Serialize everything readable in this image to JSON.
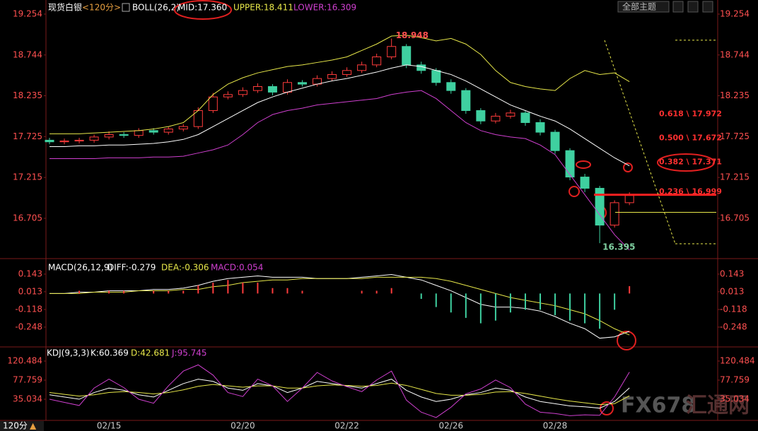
{
  "header": {
    "theme_button": "全部主题",
    "footer_period": "120分",
    "watermark": [
      "FX678",
      "汇通网"
    ]
  },
  "chart_data": [
    {
      "type": "candlestick",
      "title": "现货白银",
      "period": "<120分>",
      "indicator": "BOLL(26,2)",
      "categories": [
        null,
        null,
        null,
        null,
        "02/15",
        null,
        null,
        null,
        null,
        null,
        null,
        null,
        null,
        "02/20",
        null,
        null,
        null,
        null,
        null,
        null,
        "02/22",
        null,
        null,
        null,
        null,
        null,
        null,
        "02/26",
        null,
        null,
        null,
        null,
        null,
        null,
        "02/28",
        null,
        null,
        null,
        null,
        null
      ],
      "open": [
        17.68,
        17.66,
        17.67,
        17.68,
        17.72,
        17.75,
        17.74,
        17.8,
        17.78,
        17.82,
        17.85,
        18.05,
        18.22,
        18.25,
        18.3,
        18.35,
        18.28,
        18.4,
        18.38,
        18.45,
        18.5,
        18.55,
        18.62,
        18.72,
        18.85,
        18.62,
        18.55,
        18.4,
        18.3,
        18.05,
        17.92,
        17.98,
        18.02,
        17.9,
        17.78,
        17.55,
        17.22,
        17.08,
        16.62,
        16.9
      ],
      "high": [
        17.71,
        17.7,
        17.71,
        17.75,
        17.79,
        17.78,
        17.83,
        17.83,
        17.85,
        17.88,
        18.09,
        18.27,
        18.29,
        18.34,
        18.39,
        18.38,
        18.44,
        18.43,
        18.49,
        18.54,
        18.59,
        18.66,
        18.76,
        18.948,
        18.88,
        18.66,
        18.58,
        18.44,
        18.33,
        18.08,
        18.02,
        18.06,
        18.05,
        17.94,
        17.81,
        17.58,
        17.26,
        17.11,
        16.93,
        17.03
      ],
      "low": [
        17.63,
        17.63,
        17.64,
        17.65,
        17.69,
        17.71,
        17.71,
        17.75,
        17.75,
        17.79,
        17.82,
        18.02,
        18.19,
        18.22,
        18.27,
        18.24,
        18.25,
        18.35,
        18.35,
        18.42,
        18.47,
        18.52,
        18.59,
        18.69,
        18.58,
        18.51,
        18.36,
        18.26,
        18.01,
        17.88,
        17.89,
        17.95,
        17.86,
        17.74,
        17.51,
        17.18,
        17.03,
        16.395,
        16.59,
        16.87
      ],
      "close": [
        17.66,
        17.67,
        17.68,
        17.72,
        17.75,
        17.74,
        17.8,
        17.78,
        17.82,
        17.85,
        18.05,
        18.22,
        18.25,
        18.3,
        18.35,
        18.28,
        18.4,
        18.38,
        18.45,
        18.5,
        18.55,
        18.62,
        18.72,
        18.85,
        18.62,
        18.55,
        18.4,
        18.3,
        18.05,
        17.92,
        17.98,
        18.02,
        17.9,
        17.78,
        17.55,
        17.22,
        17.08,
        16.62,
        16.9,
        16.99
      ],
      "up_color": "#ff3c3c",
      "down_color": "#3fd0a0",
      "series": [
        {
          "name": "MID:17.360",
          "color": "#ffffff",
          "values": [
            17.6,
            17.6,
            17.61,
            17.61,
            17.62,
            17.62,
            17.63,
            17.64,
            17.66,
            17.69,
            17.75,
            17.85,
            17.95,
            18.05,
            18.15,
            18.22,
            18.28,
            18.33,
            18.38,
            18.42,
            18.45,
            18.49,
            18.53,
            18.58,
            18.62,
            18.6,
            18.55,
            18.5,
            18.42,
            18.32,
            18.22,
            18.12,
            18.05,
            17.98,
            17.92,
            17.82,
            17.7,
            17.58,
            17.46,
            17.36
          ]
        },
        {
          "name": "UPPER:18.411",
          "color": "#e8e84a",
          "values": [
            17.76,
            17.76,
            17.76,
            17.77,
            17.78,
            17.79,
            17.8,
            17.82,
            17.85,
            17.9,
            18.05,
            18.25,
            18.38,
            18.46,
            18.52,
            18.56,
            18.6,
            18.62,
            18.65,
            18.68,
            18.72,
            18.8,
            18.88,
            18.98,
            18.99,
            18.96,
            18.92,
            18.95,
            18.88,
            18.75,
            18.55,
            18.4,
            18.35,
            18.32,
            18.3,
            18.45,
            18.55,
            18.5,
            18.52,
            18.411
          ]
        },
        {
          "name": "LOWER:16.309",
          "color": "#d040d0",
          "values": [
            17.45,
            17.45,
            17.45,
            17.45,
            17.46,
            17.46,
            17.46,
            17.47,
            17.47,
            17.48,
            17.52,
            17.56,
            17.62,
            17.75,
            17.9,
            18.0,
            18.05,
            18.08,
            18.12,
            18.14,
            18.16,
            18.18,
            18.2,
            18.25,
            18.28,
            18.3,
            18.2,
            18.05,
            17.9,
            17.8,
            17.75,
            17.72,
            17.7,
            17.62,
            17.5,
            17.25,
            17.0,
            16.75,
            16.5,
            16.309
          ]
        }
      ],
      "extremes": [
        18.948,
        16.395
      ],
      "fib_levels": [
        {
          "value": 17.972,
          "label": "0.618 \\ 17.972"
        },
        {
          "value": 17.672,
          "label": "0.500 \\ 17.672"
        },
        {
          "value": 17.371,
          "label": "0.382 \\ 17.371"
        },
        {
          "value": 16.999,
          "label": "0.236 \\ 16.999"
        }
      ],
      "lines": [
        {
          "value": 16.999,
          "color": "#ff2020"
        },
        {
          "value": 16.78,
          "color": "#e8e84a"
        }
      ],
      "guides": [
        18.928,
        16.387
      ],
      "ylim": [
        16.211,
        19.43
      ],
      "yticks": [
        19.254,
        18.744,
        18.235,
        17.725,
        17.215,
        16.705
      ]
    },
    {
      "type": "macd",
      "title": "MACD(26,12,9)",
      "series": [
        {
          "name": "DIFF:-0.279",
          "color": "#ffffff",
          "values": [
            0.0,
            0.0,
            0.01,
            0.01,
            0.02,
            0.02,
            0.02,
            0.03,
            0.03,
            0.04,
            0.06,
            0.09,
            0.11,
            0.12,
            0.13,
            0.12,
            0.12,
            0.12,
            0.11,
            0.11,
            0.11,
            0.12,
            0.13,
            0.14,
            0.12,
            0.1,
            0.06,
            0.02,
            -0.03,
            -0.08,
            -0.1,
            -0.1,
            -0.11,
            -0.13,
            -0.17,
            -0.22,
            -0.26,
            -0.33,
            -0.32,
            -0.279
          ]
        },
        {
          "name": "DEA:-0.306",
          "color": "#e8e84a",
          "values": [
            0.0,
            0.0,
            0.0,
            0.01,
            0.01,
            0.01,
            0.02,
            0.02,
            0.02,
            0.03,
            0.03,
            0.05,
            0.06,
            0.08,
            0.09,
            0.1,
            0.1,
            0.11,
            0.11,
            0.11,
            0.11,
            0.11,
            0.12,
            0.12,
            0.12,
            0.12,
            0.11,
            0.09,
            0.06,
            0.03,
            0.0,
            -0.03,
            -0.05,
            -0.07,
            -0.09,
            -0.12,
            -0.15,
            -0.2,
            -0.26,
            -0.306
          ]
        },
        {
          "name": "MACD:0.054",
          "color": "#d040d0",
          "up_color": "#ff3c3c",
          "down_color": "#3fd0a0",
          "values": [
            0,
            0,
            0.02,
            0,
            0.02,
            0.02,
            0,
            0.02,
            0.02,
            0.02,
            0.06,
            0.08,
            0.1,
            0.08,
            0.08,
            0.04,
            0.04,
            0.02,
            0,
            0,
            0,
            0.02,
            0.02,
            0.04,
            0,
            -0.04,
            -0.1,
            -0.14,
            -0.18,
            -0.22,
            -0.2,
            -0.14,
            -0.12,
            -0.12,
            -0.16,
            -0.2,
            -0.22,
            -0.26,
            -0.12,
            0.054
          ]
        }
      ],
      "ylim": [
        -0.389,
        0.247
      ],
      "yticks": [
        0.143,
        0.013,
        -0.118,
        -0.248
      ]
    },
    {
      "type": "kdj",
      "title": "KDJ(9,3,3)",
      "series": [
        {
          "name": "K:60.369",
          "color": "#ffffff",
          "values": [
            45,
            40,
            35,
            50,
            60,
            55,
            45,
            40,
            55,
            70,
            80,
            75,
            60,
            55,
            70,
            65,
            50,
            60,
            75,
            70,
            65,
            60,
            70,
            80,
            55,
            40,
            30,
            35,
            45,
            50,
            60,
            55,
            40,
            30,
            25,
            20,
            18,
            15,
            30,
            60.369
          ]
        },
        {
          "name": "D:42.681",
          "color": "#e8e84a",
          "values": [
            50,
            46,
            42,
            45,
            50,
            52,
            50,
            47,
            50,
            56,
            64,
            68,
            65,
            62,
            65,
            65,
            60,
            60,
            65,
            67,
            66,
            64,
            66,
            71,
            66,
            57,
            48,
            44,
            44,
            46,
            51,
            52,
            48,
            42,
            36,
            31,
            27,
            23,
            25,
            42.681
          ]
        },
        {
          "name": "J:95.745",
          "color": "#d040d0",
          "values": [
            35,
            28,
            21,
            60,
            80,
            61,
            35,
            26,
            65,
            98,
            112,
            89,
            50,
            41,
            80,
            65,
            30,
            60,
            95,
            76,
            63,
            52,
            78,
            98,
            33,
            6,
            -6,
            17,
            47,
            58,
            78,
            61,
            24,
            6,
            3,
            -2,
            0,
            -1,
            40,
            95.745
          ]
        }
      ],
      "ylim": [
        -12.4,
        150.55
      ],
      "yticks": [
        120.484,
        77.759,
        35.034
      ]
    }
  ]
}
